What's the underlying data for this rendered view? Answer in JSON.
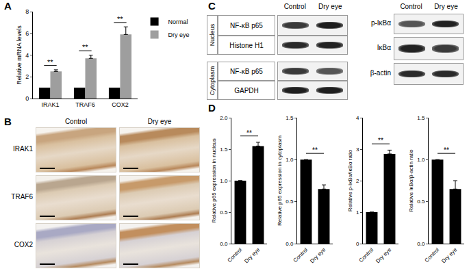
{
  "chart_data": [
    {
      "type": "bar",
      "panel": "A",
      "y_label": "Relative mRNA levels",
      "categories": [
        "IRAK1",
        "TRAF6",
        "COX2"
      ],
      "series": [
        {
          "name": "Normal",
          "color": "#000000",
          "values": [
            1,
            1,
            1
          ]
        },
        {
          "name": "Dry eye",
          "color": "#9e9e9e",
          "values": [
            2.5,
            3.7,
            5.9
          ],
          "errors": [
            0.15,
            0.3,
            0.7
          ]
        }
      ],
      "ylim": [
        0,
        8
      ],
      "yticks": [
        0,
        2,
        4,
        6,
        8
      ],
      "grid": false,
      "legend": "right",
      "annotations": [
        {
          "x": "IRAK1",
          "text": "**"
        },
        {
          "x": "TRAF6",
          "text": "**"
        },
        {
          "x": "COX2",
          "text": "**"
        }
      ]
    },
    {
      "type": "bar",
      "panel": "D",
      "y_label": "Relative p65 expression in nucleus",
      "categories": [
        "Control",
        "Dry eye"
      ],
      "values": [
        1,
        1.55
      ],
      "errors": [
        null,
        0.06
      ],
      "color": "#000000",
      "ylim": [
        0,
        2
      ],
      "yticks": [
        {
          "value": 0,
          "label": "0.0"
        },
        0.5,
        {
          "value": 1,
          "label": "1.0"
        },
        1.5,
        {
          "value": 2,
          "label": "2.0"
        }
      ],
      "grid": false,
      "annotations": [
        {
          "between": [
            "Control",
            "Dry eye"
          ],
          "text": "**"
        }
      ]
    },
    {
      "type": "bar",
      "y_label": "Relative p65 expression in cytoplasm",
      "categories": [
        "Control",
        "Dry eye"
      ],
      "values": [
        1,
        0.65
      ],
      "errors": [
        null,
        0.05
      ],
      "color": "#000000",
      "ylim": [
        0,
        1.5
      ],
      "yticks": [
        {
          "value": 0,
          "label": "0.0"
        },
        0.5,
        {
          "value": 1,
          "label": "1.0"
        },
        1.5
      ],
      "grid": false,
      "annotations": [
        {
          "between": [
            "Control",
            "Dry eye"
          ],
          "text": "**"
        }
      ]
    },
    {
      "type": "bar",
      "y_label": "Relative p-IκBα/IκBα ratio",
      "categories": [
        "Control",
        "Dry eye"
      ],
      "values": [
        1,
        2.85
      ],
      "errors": [
        null,
        0.12
      ],
      "color": "#000000",
      "ylim": [
        0,
        4
      ],
      "yticks": [
        0,
        1,
        2,
        3,
        4
      ],
      "grid": false,
      "annotations": [
        {
          "between": [
            "Control",
            "Dry eye"
          ],
          "text": "**"
        }
      ]
    },
    {
      "type": "bar",
      "y_label": "Relative IκBα/β-actin ratio",
      "categories": [
        "Control",
        "Dry eye"
      ],
      "values": [
        1,
        0.65
      ],
      "errors": [
        null,
        0.1
      ],
      "color": "#000000",
      "ylim": [
        0,
        1.5
      ],
      "yticks": [
        {
          "value": 0,
          "label": "0.0"
        },
        0.5,
        {
          "value": 1,
          "label": "1.0"
        },
        1.5
      ],
      "grid": false,
      "annotations": [
        {
          "between": [
            "Control",
            "Dry eye"
          ],
          "text": "**"
        }
      ]
    }
  ],
  "ihc": {
    "panel": "B",
    "columns": [
      "Control",
      "Dry eye"
    ],
    "rows": [
      "IRAK1",
      "TRAF6",
      "COX2"
    ]
  },
  "western": {
    "panel": "C",
    "columns": [
      "Control",
      "Dry eye"
    ],
    "left": [
      {
        "group": "Nucleus",
        "rows": [
          "NF-κB p65",
          "Histone H1"
        ]
      },
      {
        "group": "Cytoplasm",
        "rows": [
          "NF-κB p65",
          "GAPDH"
        ]
      }
    ],
    "right": [
      "p-IκBα",
      "IκBα",
      "β-actin"
    ]
  }
}
